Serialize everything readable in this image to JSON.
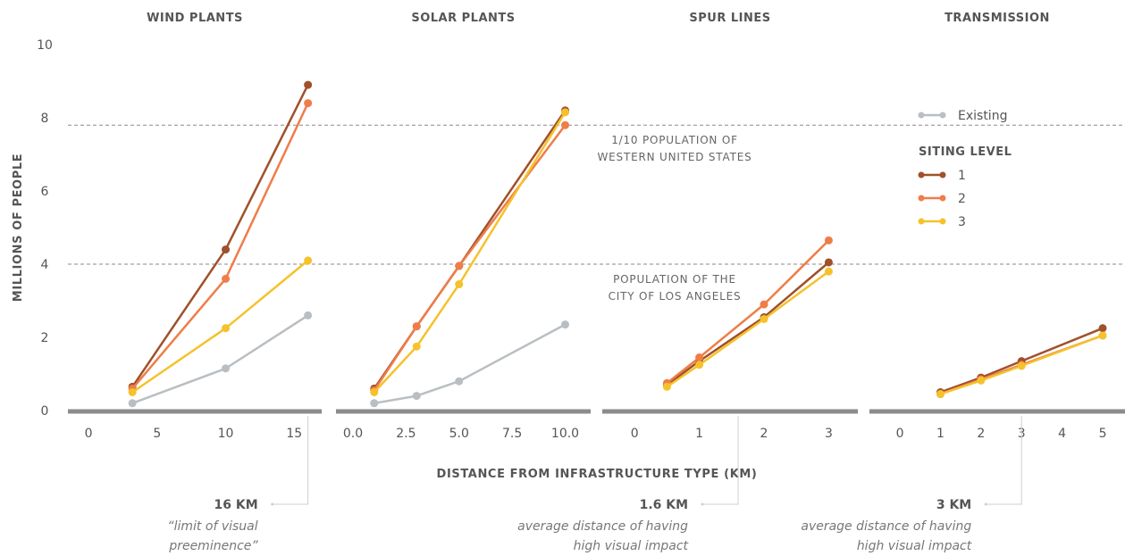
{
  "chart_data": {
    "type": "line",
    "ylabel": "MILLIONS OF PEOPLE",
    "xlabel": "DISTANCE FROM INFRASTRUCTURE TYPE (KM)",
    "ylim": [
      0,
      10
    ],
    "yticks": [
      "0",
      "2",
      "4",
      "6",
      "8",
      "10"
    ],
    "grid": false,
    "legend": {
      "placement": "right",
      "existing_label": "Existing",
      "heading": "SITING LEVEL",
      "items": [
        {
          "label": "1",
          "color": "#a0502a"
        },
        {
          "label": "2",
          "color": "#ef7d48"
        },
        {
          "label": "3",
          "color": "#f5c22b"
        }
      ],
      "existing_color": "#b9bec2"
    },
    "reference_lines": [
      {
        "value": 7.8,
        "label_lines": [
          "1/10 POPULATION OF",
          "WESTERN UNITED STATES"
        ]
      },
      {
        "value": 4.0,
        "label_lines": [
          "POPULATION OF THE",
          "CITY OF LOS ANGELES"
        ]
      }
    ],
    "panels": [
      {
        "title": "WIND PLANTS",
        "xlim": [
          -1.5,
          17
        ],
        "xticks": [
          "0",
          "5",
          "10",
          "15"
        ],
        "xtick_values": [
          0,
          5,
          10,
          15
        ],
        "series": [
          {
            "id": "existing",
            "x": [
              3.2,
              10,
              16
            ],
            "y": [
              0.2,
              1.15,
              2.6
            ]
          },
          {
            "id": "1",
            "x": [
              3.2,
              10,
              16
            ],
            "y": [
              0.65,
              4.4,
              8.9
            ]
          },
          {
            "id": "2",
            "x": [
              3.2,
              10,
              16
            ],
            "y": [
              0.6,
              3.6,
              8.4
            ]
          },
          {
            "id": "3",
            "x": [
              3.2,
              10,
              16
            ],
            "y": [
              0.5,
              2.25,
              4.1
            ]
          }
        ],
        "note": {
          "head": "16 KM",
          "body": [
            "“limit of visual",
            "preeminence”"
          ],
          "marker_x": 16
        }
      },
      {
        "title": "SOLAR PLANTS",
        "xlim": [
          -0.8,
          11.2
        ],
        "xticks": [
          "0.0",
          "2.5",
          "5.0",
          "7.5",
          "10.0"
        ],
        "xtick_values": [
          0,
          2.5,
          5,
          7.5,
          10
        ],
        "series": [
          {
            "id": "existing",
            "x": [
              1,
              3,
              5,
              10
            ],
            "y": [
              0.2,
              0.4,
              0.8,
              2.35
            ]
          },
          {
            "id": "1",
            "x": [
              1,
              3,
              5,
              10
            ],
            "y": [
              0.6,
              2.3,
              3.95,
              8.2
            ]
          },
          {
            "id": "2",
            "x": [
              1,
              3,
              5,
              10
            ],
            "y": [
              0.55,
              2.3,
              3.95,
              7.8
            ]
          },
          {
            "id": "3",
            "x": [
              1,
              3,
              5,
              10
            ],
            "y": [
              0.5,
              1.75,
              3.45,
              8.15
            ]
          }
        ],
        "note": null
      },
      {
        "title": "SPUR LINES",
        "xlim": [
          -0.5,
          3.45
        ],
        "xticks": [
          "0",
          "1",
          "2",
          "3"
        ],
        "xtick_values": [
          0,
          1,
          2,
          3
        ],
        "series": [
          {
            "id": "1",
            "x": [
              0.5,
              1,
              2,
              3
            ],
            "y": [
              0.7,
              1.35,
              2.55,
              4.05
            ]
          },
          {
            "id": "2",
            "x": [
              0.5,
              1,
              2,
              3
            ],
            "y": [
              0.75,
              1.45,
              2.9,
              4.65
            ]
          },
          {
            "id": "3",
            "x": [
              0.5,
              1,
              2,
              3
            ],
            "y": [
              0.65,
              1.25,
              2.5,
              3.8
            ]
          }
        ],
        "note": {
          "head": "1.6 KM",
          "body": [
            "average distance of having",
            "high visual impact"
          ],
          "marker_x": 1.6
        }
      },
      {
        "title": "TRANSMISSION",
        "xlim": [
          -0.75,
          5.55
        ],
        "xticks": [
          "0",
          "1",
          "2",
          "3",
          "4",
          "5"
        ],
        "xtick_values": [
          0,
          1,
          2,
          3,
          4,
          5
        ],
        "series": [
          {
            "id": "1",
            "x": [
              1,
              2,
              3,
              5
            ],
            "y": [
              0.5,
              0.9,
              1.35,
              2.25
            ]
          },
          {
            "id": "2",
            "x": [
              1,
              2,
              3,
              5
            ],
            "y": [
              0.45,
              0.85,
              1.25,
              2.05
            ]
          },
          {
            "id": "3",
            "x": [
              1,
              2,
              3,
              5
            ],
            "y": [
              0.45,
              0.82,
              1.22,
              2.05
            ]
          }
        ],
        "note": {
          "head": "3 KM",
          "body": [
            "average distance of having",
            "high visual impact"
          ],
          "marker_x": 3
        }
      }
    ]
  }
}
